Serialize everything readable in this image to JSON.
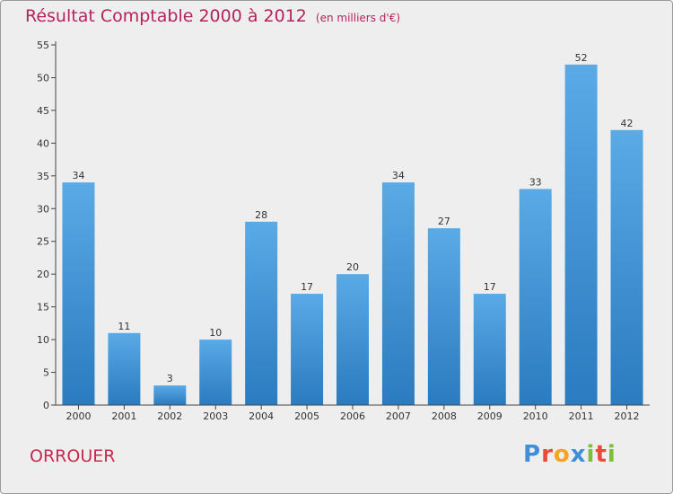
{
  "header": {
    "title": "Résultat Comptable 2000 à 2012",
    "unit": "(en milliers d'€)"
  },
  "footer": {
    "commune": "ORROUER",
    "logo_letters": [
      "P",
      "r",
      "o",
      "x",
      "i",
      "t",
      "i"
    ],
    "logo_colors": [
      "#3f8fd6",
      "#e84b3a",
      "#f2a51f",
      "#3f8fd6",
      "#7cbf3a",
      "#e84b3a",
      "#7cbf3a"
    ]
  },
  "chart_data": {
    "type": "bar",
    "title": "Résultat Comptable 2000 à 2012",
    "subtitle": "(en milliers d'€)",
    "categories": [
      "2000",
      "2001",
      "2002",
      "2003",
      "2004",
      "2005",
      "2006",
      "2007",
      "2008",
      "2009",
      "2010",
      "2011",
      "2012"
    ],
    "values": [
      34,
      11,
      3,
      10,
      28,
      17,
      20,
      34,
      27,
      17,
      33,
      52,
      42
    ],
    "ylim": [
      0,
      55
    ],
    "yticks": [
      0,
      5,
      10,
      15,
      20,
      25,
      30,
      35,
      40,
      45,
      50,
      55
    ],
    "grid": false,
    "colors": {
      "bar_top": "#5aaae6",
      "bar_bottom": "#2a7bc0",
      "axis": "#444444",
      "background": "#eeeeee"
    }
  }
}
